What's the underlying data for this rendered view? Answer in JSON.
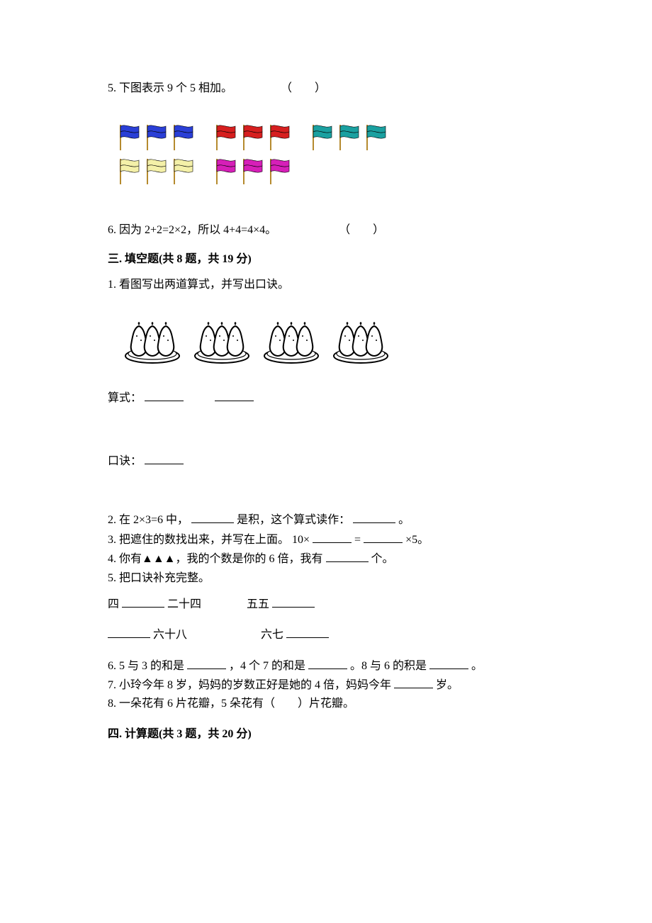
{
  "colors": {
    "text": "#000000",
    "background": "#ffffff",
    "flag_blue": "#2a3fd6",
    "flag_red": "#d61f1f",
    "flag_teal": "#1aa0a0",
    "flag_yellow": "#f4f0a8",
    "flag_magenta": "#d61fb8",
    "flag_pole": "#b58a2e",
    "pear_outline": "#000000",
    "pear_fill": "#ffffff",
    "plate_fill": "#ffffff"
  },
  "q5": {
    "text": "5. 下图表示 9 个 5 相加。",
    "paren": "（　　）",
    "flag_rows": [
      [
        {
          "count": 3,
          "color_key": "flag_blue"
        },
        {
          "count": 3,
          "color_key": "flag_red"
        },
        {
          "count": 3,
          "color_key": "flag_teal"
        }
      ],
      [
        {
          "count": 3,
          "color_key": "flag_yellow"
        },
        {
          "count": 3,
          "color_key": "flag_magenta"
        }
      ]
    ]
  },
  "q6": {
    "text": "6. 因为 2+2=2×2，所以 4+4=4×4。",
    "paren": "（　　）"
  },
  "section3": {
    "title": "三. 填空题(共 8 题，共 19 分)"
  },
  "s3q1": {
    "text": "1. 看图写出两道算式，并写出口诀。",
    "plates": 4,
    "pears_per_plate": 3,
    "expr_label": "算式：",
    "mnemonic_label": "口诀："
  },
  "s3q2": {
    "pre": "2. 在 2×3=6 中，",
    "mid": "是积，这个算式读作：",
    "end": "。"
  },
  "s3q3": {
    "pre": "3. 把遮住的数找出来，并写在上面。 10×",
    "mid": "=",
    "end": "×5。"
  },
  "s3q4": {
    "pre": "4. 你有▲▲▲，我的个数是你的 6 倍，我有",
    "end": "个。"
  },
  "s3q5": {
    "title": "5. 把口诀补充完整。",
    "row1a_pre": "四",
    "row1a_post": "二十四",
    "row1b_pre": "五五",
    "row2a_post": "六十八",
    "row2b_pre": "六七"
  },
  "s3q6": {
    "a": "6. 5 与 3 的和是",
    "b": "，4 个 7 的和是",
    "c": "。8 与 6 的积是",
    "d": "。"
  },
  "s3q7": {
    "a": "7. 小玲今年 8 岁，妈妈的岁数正好是她的 4 倍，妈妈今年",
    "b": "岁。"
  },
  "s3q8": {
    "text": "8. 一朵花有 6 片花瓣，5 朵花有（　　）片花瓣。"
  },
  "section4": {
    "title": "四. 计算题(共 3 题，共 20 分)"
  }
}
